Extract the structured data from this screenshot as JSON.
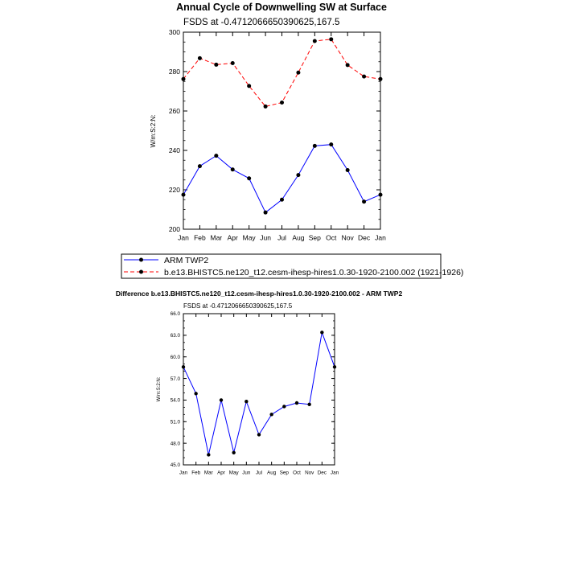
{
  "colors": {
    "obs": "#0000ff",
    "model": "#ff0000",
    "marker": "#000000",
    "axis": "#000000"
  },
  "chart_data": [
    {
      "type": "line",
      "title": "Annual Cycle of Downwelling SW at Surface",
      "subtitle": "FSDS at -0.4712066650390625,167.5",
      "xlabel": "",
      "ylabel": "W/m:S:2:N:",
      "categories": [
        "Jan",
        "Feb",
        "Mar",
        "Apr",
        "May",
        "Jun",
        "Jul",
        "Aug",
        "Sep",
        "Oct",
        "Nov",
        "Dec",
        "Jan"
      ],
      "ylim": [
        200,
        300
      ],
      "yticks": [
        200,
        220,
        240,
        260,
        280,
        300
      ],
      "yticklabels": [
        "200",
        "220",
        "240",
        "260",
        "280",
        "300"
      ],
      "series": [
        {
          "name": "ARM TWP2",
          "style": "solid",
          "color": "#0000ff",
          "values": [
            217.5,
            232,
            237.3,
            230.3,
            225.8,
            208.5,
            215,
            227.5,
            242.3,
            243,
            230,
            214,
            217.5
          ]
        },
        {
          "name": "b.e13.BHISTC5.ne120_t12.cesm-ihesp-hires1.0.30-1920-2100.002 (1921-1926)",
          "style": "dashed",
          "color": "#ff0000",
          "values": [
            276.2,
            286.8,
            283.5,
            284.3,
            272.7,
            262.3,
            264.3,
            279.5,
            295.5,
            296.4,
            283.3,
            277.5,
            276.2
          ]
        }
      ]
    },
    {
      "type": "line",
      "title": "Difference b.e13.BHISTC5.ne120_t12.cesm-ihesp-hires1.0.30-1920-2100.002 - ARM TWP2",
      "subtitle": "FSDS at -0.4712066650390625,167.5",
      "xlabel": "",
      "ylabel": "W/m:S:2:N:",
      "categories": [
        "Jan",
        "Feb",
        "Mar",
        "Apr",
        "May",
        "Jun",
        "Jul",
        "Aug",
        "Sep",
        "Oct",
        "Nov",
        "Dec",
        "Jan"
      ],
      "ylim": [
        45,
        66
      ],
      "yticks": [
        45,
        48,
        51,
        54,
        57,
        60,
        63,
        66
      ],
      "yticklabels": [
        "45.0",
        "48.0",
        "51.0",
        "54.0",
        "57.0",
        "60.0",
        "63.0",
        "66.0"
      ],
      "series": [
        {
          "name": "Difference",
          "style": "solid",
          "color": "#0000ff",
          "values": [
            58.6,
            54.9,
            46.4,
            54.0,
            46.7,
            53.8,
            49.2,
            52.0,
            53.1,
            53.6,
            53.4,
            63.4,
            58.6
          ]
        }
      ]
    }
  ]
}
